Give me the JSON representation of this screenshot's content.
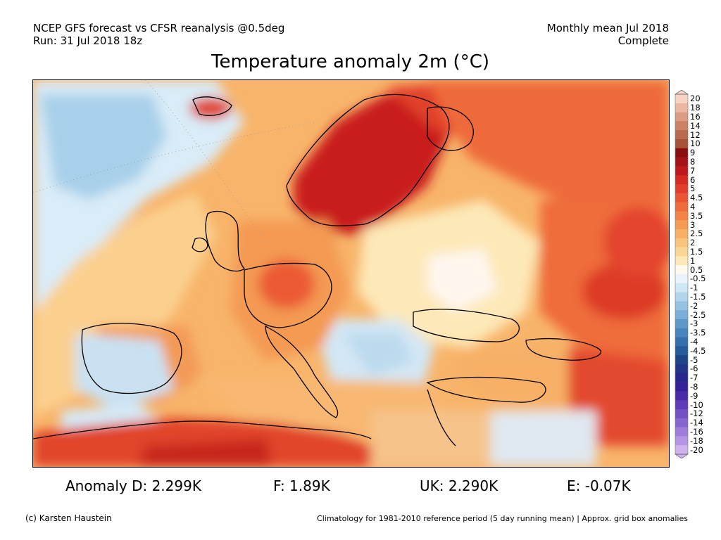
{
  "header": {
    "line1_left": "NCEP GFS forecast vs CFSR reanalysis @0.5deg",
    "line2_left": "Run: 31 Jul 2018 18z",
    "line1_right": "Monthly mean Jul 2018",
    "line2_right": "Complete"
  },
  "title": "Temperature anomaly 2m (°C)",
  "colorbar": {
    "labels": [
      "20",
      "18",
      "16",
      "14",
      "12",
      "10",
      "9",
      "8",
      "7",
      "6",
      "5",
      "4.5",
      "4",
      "3.5",
      "3",
      "2.5",
      "2",
      "1.5",
      "1",
      "0.5",
      "-0.5",
      "-1",
      "-1.5",
      "-2",
      "-2.5",
      "-3",
      "-3.5",
      "-4",
      "-4.5",
      "-5",
      "-6",
      "-7",
      "-8",
      "-9",
      "-10",
      "-12",
      "-14",
      "-16",
      "-18",
      "-20"
    ],
    "colors": [
      "#f6d3c2",
      "#eab8a2",
      "#dc9c83",
      "#cd8163",
      "#b96a4d",
      "#a55236",
      "#8a0f0f",
      "#a41417",
      "#be1a1d",
      "#d52a22",
      "#e33e2c",
      "#ea5534",
      "#ef6c3b",
      "#f28446",
      "#f59b54",
      "#f7b066",
      "#f9c47b",
      "#fbd795",
      "#fde8b7",
      "#fff8ef",
      "#eaf3fb",
      "#cfe6f5",
      "#b2d5ec",
      "#95c2e2",
      "#78aed7",
      "#5f99cb",
      "#4783bd",
      "#356ead",
      "#275b9c",
      "#1d4689",
      "#20358a",
      "#27268d",
      "#35209a",
      "#4a2aa9",
      "#5f3bb7",
      "#7350c4",
      "#8866d0",
      "#9e7ddb",
      "#b596e5",
      "#cdb2ee"
    ]
  },
  "stats": {
    "d": "Anomaly D: 2.299K",
    "f": "F: 1.89K",
    "uk": "UK: 2.290K",
    "e": "E: -0.07K"
  },
  "footer": {
    "left": "(c) Karsten Haustein",
    "right": "Climatology for 1981-2010 reference period (5 day running mean) | Approx. grid box anomalies"
  }
}
